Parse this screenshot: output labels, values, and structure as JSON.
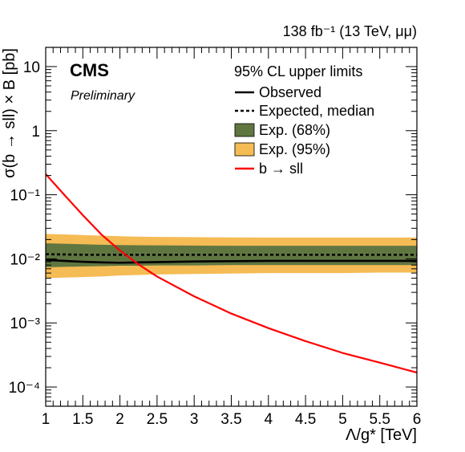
{
  "chart_data": {
    "type": "line",
    "logy": true,
    "xlim": [
      1,
      6
    ],
    "ylim_exp": [
      -4.3,
      1.3
    ],
    "xlabel": "Λ/g* [TeV]",
    "ylabel": "σ(b → sll) × B [pb]",
    "experiment": "CMS",
    "status": "Preliminary",
    "lumi_label": "138 fb⁻¹ (13 TeV, μμ)",
    "legend_title": "95% CL upper limits",
    "legend_position": "top-right",
    "x_ticks": [
      "1",
      "1.5",
      "2",
      "2.5",
      "3",
      "3.5",
      "4",
      "4.5",
      "5",
      "5.5",
      "6"
    ],
    "y_ticks": [
      {
        "exp": 1,
        "label": "10"
      },
      {
        "exp": 0,
        "label": "1"
      },
      {
        "exp": -1,
        "label": "10⁻¹"
      },
      {
        "exp": -2,
        "label": "10⁻²"
      },
      {
        "exp": -3,
        "label": "10⁻³"
      },
      {
        "exp": -4,
        "label": "10⁻⁴"
      }
    ],
    "x": [
      1,
      1.25,
      1.5,
      1.75,
      2,
      2.25,
      2.5,
      3,
      3.5,
      4,
      4.5,
      5,
      5.5,
      6
    ],
    "series": [
      {
        "name": "Observed",
        "style": "solid",
        "color": "#000000",
        "values": [
          0.0096,
          0.0093,
          0.009,
          0.0088,
          0.0087,
          0.0088,
          0.0089,
          0.0091,
          0.0092,
          0.0093,
          0.0093,
          0.0093,
          0.0093,
          0.0093
        ]
      },
      {
        "name": "Expected, median",
        "style": "dashed",
        "color": "#000000",
        "values": [
          0.0118,
          0.0117,
          0.0116,
          0.0116,
          0.0116,
          0.0116,
          0.0116,
          0.0116,
          0.0116,
          0.0116,
          0.0116,
          0.0116,
          0.0116,
          0.0116
        ]
      },
      {
        "name": "b → sll",
        "style": "solid",
        "color": "#ff0000",
        "values": [
          0.21,
          0.1,
          0.048,
          0.024,
          0.0135,
          0.0082,
          0.0053,
          0.0026,
          0.0014,
          0.00083,
          0.00052,
          0.00034,
          0.00024,
          0.000168
        ]
      }
    ],
    "bands": [
      {
        "name": "Exp. (95%)",
        "color": "#f5bb54",
        "low": [
          0.005,
          0.0051,
          0.0052,
          0.0053,
          0.0055,
          0.0056,
          0.0057,
          0.0058,
          0.0059,
          0.006,
          0.006,
          0.006,
          0.0061,
          0.0061
        ],
        "high": [
          0.0245,
          0.024,
          0.0235,
          0.023,
          0.0225,
          0.0222,
          0.022,
          0.0218,
          0.0216,
          0.0215,
          0.0215,
          0.0215,
          0.0215,
          0.0215
        ]
      },
      {
        "name": "Exp. (68%)",
        "color": "#607641",
        "low": [
          0.0074,
          0.0075,
          0.0076,
          0.0077,
          0.0078,
          0.0078,
          0.0079,
          0.0079,
          0.008,
          0.008,
          0.008,
          0.008,
          0.008,
          0.008
        ],
        "high": [
          0.0175,
          0.0172,
          0.0169,
          0.0166,
          0.0164,
          0.0163,
          0.0162,
          0.0161,
          0.016,
          0.016,
          0.016,
          0.016,
          0.016,
          0.016
        ]
      }
    ]
  }
}
